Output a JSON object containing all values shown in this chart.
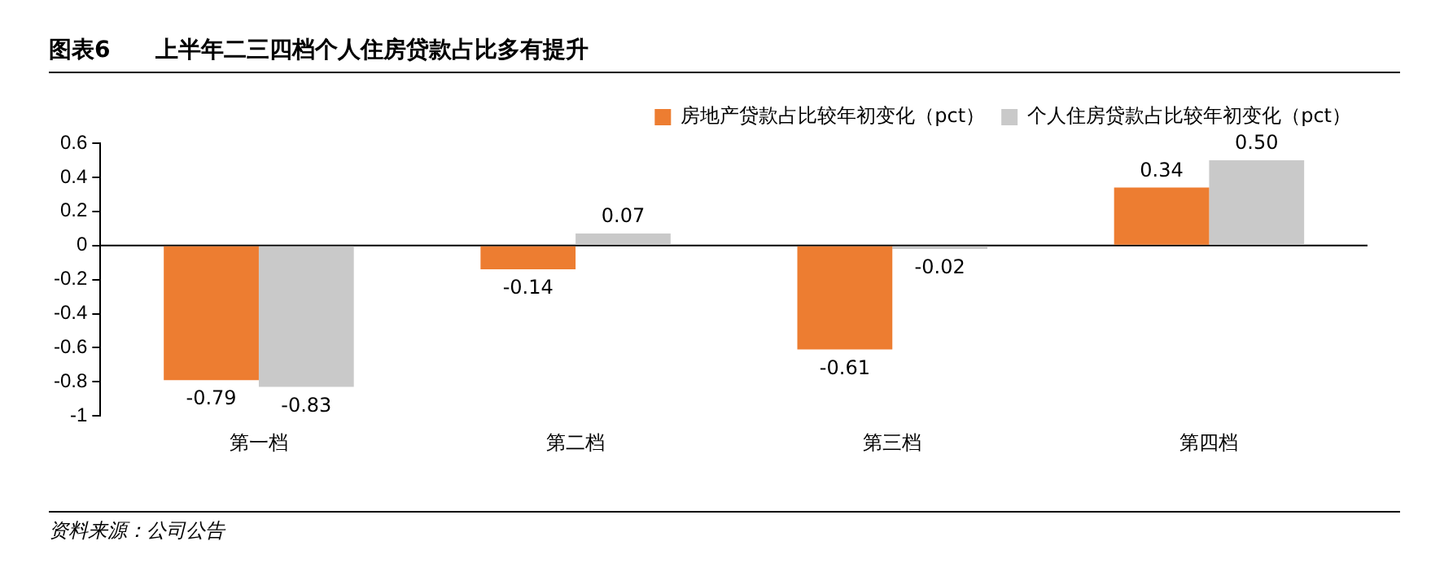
{
  "chart_data": {
    "type": "bar",
    "title": "图表6　　上半年二三四档个人住房贷款占比多有提升",
    "categories": [
      "第一档",
      "第二档",
      "第三档",
      "第四档"
    ],
    "series": [
      {
        "name": "房地产贷款占比较年初变化（pct）",
        "color": "#ed7d31",
        "values": [
          -0.79,
          -0.14,
          -0.61,
          0.34
        ],
        "value_labels": [
          "-0.79",
          "-0.14",
          "-0.61",
          "0.34"
        ]
      },
      {
        "name": "个人住房贷款占比较年初变化（pct）",
        "color": "#c9c9c9",
        "values": [
          -0.83,
          0.07,
          -0.02,
          0.5
        ],
        "value_labels": [
          "-0.83",
          "0.07",
          "-0.02",
          "0.50"
        ]
      }
    ],
    "ylim": [
      -1,
      0.6
    ],
    "yticks": [
      0.6,
      0.4,
      0.2,
      0,
      -0.2,
      -0.4,
      -0.6,
      -0.8,
      -1
    ],
    "grid": false,
    "legend": "top",
    "ref_lines": [
      {
        "axis": "y",
        "value": 0,
        "color": "#000000"
      }
    ],
    "annotations": [
      "资料来源：公司公告"
    ]
  }
}
